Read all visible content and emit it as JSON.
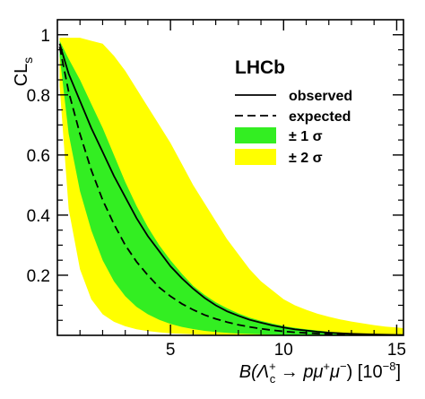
{
  "chart_data": {
    "type": "line",
    "title": "",
    "brand_label": "LHCb",
    "ylabel": {
      "main": "CL",
      "sub": "s"
    },
    "xlabel": {
      "prefix": "B(",
      "lambda": "Λ",
      "lambda_sup": "+",
      "lambda_sub": "c",
      "arrow": " → ",
      "p": "p",
      "mu1": "μ",
      "mu1_sup": "+",
      "mu2": "μ",
      "mu2_sup": "−",
      "close": ")",
      "unit": " [10",
      "unit_exp": "−8",
      "unit_close": "]"
    },
    "xlim": [
      0,
      15.3
    ],
    "ylim": [
      0,
      1.05
    ],
    "x_ticks": [
      5,
      10,
      15
    ],
    "y_ticks": [
      0.2,
      0.4,
      0.6,
      0.8,
      1
    ],
    "x_tick_labels": [
      "5",
      "10",
      "15"
    ],
    "y_tick_labels": [
      "0.2",
      "0.4",
      "0.6",
      "0.8",
      "1"
    ],
    "legend": {
      "placement": "top-right",
      "entries": [
        {
          "label": "observed",
          "style": "solid"
        },
        {
          "label": "expected",
          "style": "dashed"
        },
        {
          "label": "± 1 σ",
          "style": "band",
          "color": "#33ee22"
        },
        {
          "label": "± 2 σ",
          "style": "band",
          "color": "#ffff00"
        }
      ]
    },
    "colors": {
      "band_1sigma": "#33ee22",
      "band_2sigma": "#ffff00",
      "line": "#000000"
    },
    "x": [
      0.1,
      0.5,
      1,
      1.5,
      2,
      2.5,
      3,
      3.5,
      4,
      4.5,
      5,
      5.5,
      6,
      6.5,
      7,
      7.5,
      8,
      8.5,
      9,
      9.5,
      10,
      10.5,
      11,
      11.5,
      12,
      12.5,
      13,
      13.5,
      14,
      14.5,
      15,
      15.3
    ],
    "series": [
      {
        "name": "observed",
        "values": [
          0.97,
          0.87,
          0.78,
          0.69,
          0.61,
          0.53,
          0.46,
          0.39,
          0.33,
          0.28,
          0.23,
          0.19,
          0.155,
          0.125,
          0.1,
          0.08,
          0.065,
          0.052,
          0.042,
          0.033,
          0.026,
          0.02,
          0.016,
          0.012,
          0.009,
          0.007,
          0.005,
          0.004,
          0.003,
          0.002,
          0.0015,
          0.001
        ]
      },
      {
        "name": "expected",
        "values": [
          0.96,
          0.81,
          0.67,
          0.55,
          0.45,
          0.37,
          0.3,
          0.245,
          0.2,
          0.16,
          0.13,
          0.105,
          0.085,
          0.068,
          0.055,
          0.044,
          0.035,
          0.028,
          0.022,
          0.017,
          0.013,
          0.01,
          0.008,
          0.006,
          0.0045,
          0.0035,
          0.0026,
          0.002,
          0.0015,
          0.001,
          0.0008,
          0.0007
        ]
      },
      {
        "name": "+1σ",
        "values": [
          0.98,
          0.92,
          0.85,
          0.77,
          0.69,
          0.6,
          0.51,
          0.43,
          0.36,
          0.3,
          0.25,
          0.205,
          0.165,
          0.135,
          0.11,
          0.09,
          0.073,
          0.059,
          0.048,
          0.039,
          0.031,
          0.025,
          0.02,
          0.016,
          0.012,
          0.009,
          0.007,
          0.0055,
          0.004,
          0.003,
          0.002,
          0.0018
        ]
      },
      {
        "name": "−1σ",
        "values": [
          0.93,
          0.67,
          0.48,
          0.35,
          0.25,
          0.18,
          0.13,
          0.095,
          0.07,
          0.052,
          0.038,
          0.028,
          0.021,
          0.015,
          0.011,
          0.008,
          0.006,
          0.0045,
          0.0033,
          0.0025,
          0.0018,
          0.0013,
          0.001,
          0.0008,
          0.0006,
          0.0005,
          0.0004,
          0.0003,
          0.0002,
          0.0002,
          0.0001,
          0.0001
        ]
      },
      {
        "name": "+2σ",
        "values": [
          0.99,
          0.99,
          0.99,
          0.98,
          0.97,
          0.93,
          0.88,
          0.82,
          0.76,
          0.7,
          0.64,
          0.57,
          0.5,
          0.44,
          0.38,
          0.32,
          0.27,
          0.22,
          0.18,
          0.15,
          0.12,
          0.1,
          0.085,
          0.072,
          0.062,
          0.053,
          0.046,
          0.04,
          0.034,
          0.029,
          0.026,
          0.024
        ]
      },
      {
        "name": "−2σ",
        "values": [
          0.83,
          0.42,
          0.22,
          0.12,
          0.07,
          0.045,
          0.03,
          0.02,
          0.014,
          0.01,
          0.007,
          0.005,
          0.0035,
          0.0025,
          0.0018,
          0.0013,
          0.001,
          0.0007,
          0.0005,
          0.0004,
          0.0003,
          0.0002,
          0.0002,
          0.0001,
          0.0001,
          0.0001,
          0.0001,
          0.0001,
          0.0,
          0.0,
          0.0,
          0.0
        ]
      }
    ]
  }
}
